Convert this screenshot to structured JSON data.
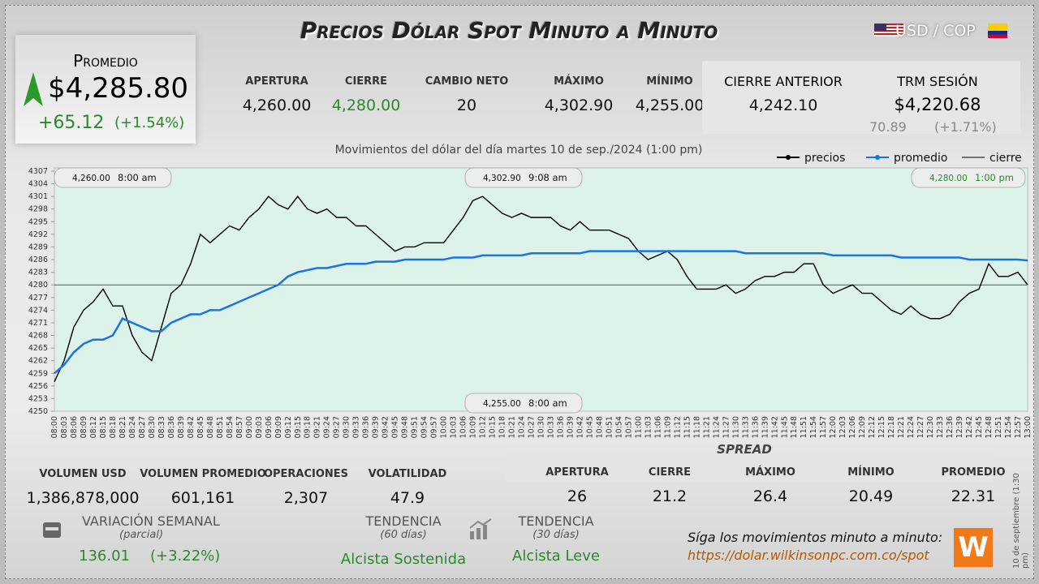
{
  "header": {
    "title": "Precios Dólar Spot Minuto a Minuto",
    "pair": "USD / COP"
  },
  "average": {
    "label": "Promedio",
    "value": "$4,285.80",
    "change": "+65.12",
    "pct": "(+1.54%)"
  },
  "stats": [
    {
      "label": "APERTURA",
      "value": "4,260.00"
    },
    {
      "label": "CIERRE",
      "value": "4,280.00"
    },
    {
      "label": "CAMBIO NETO",
      "value": "20"
    },
    {
      "label": "MÁXIMO",
      "value": "4,302.90"
    },
    {
      "label": "MÍNIMO",
      "value": "4,255.00"
    }
  ],
  "previous": {
    "close_label": "CIERRE ANTERIOR",
    "close_value": "4,242.10",
    "trm_label": "TRM SESIÓN",
    "trm_value": "$4,220.68",
    "trm_change": "70.89",
    "trm_pct": "(+1.71%)"
  },
  "volume": [
    {
      "label": "VOLUMEN USD",
      "value": "1,386,878,000"
    },
    {
      "label": "VOLUMEN PROMEDIO",
      "value": "601,161"
    },
    {
      "label": "OPERACIONES",
      "value": "2,307"
    },
    {
      "label": "VOLATILIDAD",
      "value": "47.9"
    }
  ],
  "spread": {
    "title": "SPREAD",
    "items": [
      {
        "label": "APERTURA",
        "value": "26"
      },
      {
        "label": "CIERRE",
        "value": "21.2"
      },
      {
        "label": "MÁXIMO",
        "value": "26.4"
      },
      {
        "label": "MÍNIMO",
        "value": "20.49"
      },
      {
        "label": "PROMEDIO",
        "value": "22.31"
      }
    ]
  },
  "weekly": {
    "label": "VARIACIÓN SEMANAL",
    "note": "(parcial)",
    "value": "136.01",
    "pct": "(+3.22%)"
  },
  "trends": [
    {
      "label": "TENDENCIA",
      "note": "(60 días)",
      "value": "Alcista Sostenida"
    },
    {
      "label": "TENDENCIA",
      "note": "(30 días)",
      "value": "Alcista Leve"
    }
  ],
  "footer": {
    "invite": "Síga los movimientos minuto a minuto:",
    "url": "https://dolar.wilkinsonpc.com.co/spot",
    "stamp": "10 de septiembre (1:30 pm)",
    "logo": "W"
  },
  "chart_data": {
    "type": "line",
    "title": "Movimientos del dólar del día martes 10 de sep./2024 (1:00 pm)",
    "categories": [
      "08:00",
      "08:03",
      "08:06",
      "08:09",
      "08:12",
      "08:15",
      "08:18",
      "08:21",
      "08:24",
      "08:27",
      "08:30",
      "08:33",
      "08:36",
      "08:39",
      "08:42",
      "08:45",
      "08:48",
      "08:51",
      "08:54",
      "08:57",
      "09:00",
      "09:03",
      "09:06",
      "09:09",
      "09:12",
      "09:15",
      "09:18",
      "09:21",
      "09:24",
      "09:27",
      "09:30",
      "09:33",
      "09:36",
      "09:39",
      "09:42",
      "09:45",
      "09:48",
      "09:51",
      "09:54",
      "09:57",
      "10:00",
      "10:03",
      "10:06",
      "10:09",
      "10:12",
      "10:15",
      "10:18",
      "10:21",
      "10:24",
      "10:27",
      "10:30",
      "10:33",
      "10:36",
      "10:39",
      "10:42",
      "10:45",
      "10:48",
      "10:51",
      "10:54",
      "10:57",
      "11:00",
      "11:03",
      "11:06",
      "11:09",
      "11:12",
      "11:15",
      "11:18",
      "11:21",
      "11:24",
      "11:27",
      "11:30",
      "11:33",
      "11:36",
      "11:39",
      "11:42",
      "11:45",
      "11:48",
      "11:51",
      "11:54",
      "11:57",
      "12:00",
      "12:03",
      "12:06",
      "12:09",
      "12:12",
      "12:15",
      "12:18",
      "12:21",
      "12:24",
      "12:27",
      "12:30",
      "12:33",
      "12:36",
      "12:39",
      "12:42",
      "12:45",
      "12:48",
      "12:51",
      "12:54",
      "12:57",
      "13:00"
    ],
    "series": [
      {
        "name": "precios",
        "color": "#000000",
        "values": [
          4257,
          4262,
          4270,
          4274,
          4276,
          4279,
          4275,
          4275,
          4268,
          4264,
          4262,
          4270,
          4278,
          4280,
          4285,
          4292,
          4290,
          4292,
          4294,
          4293,
          4296,
          4298,
          4301,
          4299,
          4298,
          4301,
          4298,
          4297,
          4298,
          4296,
          4296,
          4294,
          4294,
          4292,
          4290,
          4288,
          4289,
          4289,
          4290,
          4290,
          4290,
          4293,
          4296,
          4300,
          4301,
          4299,
          4297,
          4296,
          4297,
          4296,
          4296,
          4296,
          4294,
          4293,
          4295,
          4293,
          4293,
          4293,
          4292,
          4291,
          4288,
          4286,
          4287,
          4288,
          4286,
          4282,
          4279,
          4279,
          4279,
          4280,
          4278,
          4279,
          4281,
          4282,
          4282,
          4283,
          4283,
          4285,
          4285,
          4280,
          4278,
          4279,
          4280,
          4278,
          4278,
          4276,
          4274,
          4273,
          4275,
          4273,
          4272,
          4272,
          4273,
          4276,
          4278,
          4279,
          4285,
          4282,
          4282,
          4283,
          4280
        ]
      },
      {
        "name": "promedio",
        "color": "#1a73e8",
        "values": [
          4259,
          4261,
          4264,
          4266,
          4267,
          4267,
          4268,
          4272,
          4271,
          4270,
          4269,
          4269,
          4271,
          4272,
          4273,
          4273,
          4274,
          4274,
          4275,
          4276,
          4277,
          4278,
          4279,
          4280,
          4282,
          4283,
          4283.5,
          4284,
          4284,
          4284.5,
          4285,
          4285,
          4285,
          4285.5,
          4285.5,
          4285.5,
          4286,
          4286,
          4286,
          4286,
          4286,
          4286.5,
          4286.5,
          4286.5,
          4287,
          4287,
          4287,
          4287,
          4287,
          4287.5,
          4287.5,
          4287.5,
          4287.5,
          4287.5,
          4287.5,
          4288,
          4288,
          4288,
          4288,
          4288,
          4288,
          4288,
          4288,
          4288,
          4288,
          4288,
          4288,
          4288,
          4288,
          4288,
          4288,
          4287.5,
          4287.5,
          4287.5,
          4287.5,
          4287.5,
          4287.5,
          4287.5,
          4287.5,
          4287.5,
          4287,
          4287,
          4287,
          4287,
          4287,
          4287,
          4287,
          4286.5,
          4286.5,
          4286.5,
          4286.5,
          4286.5,
          4286.5,
          4286.5,
          4286,
          4286,
          4286,
          4286,
          4286,
          4286,
          4285.8
        ]
      }
    ],
    "close_line": {
      "name": "cierre",
      "color": "#000000",
      "value": 4280
    },
    "ylim": [
      4250,
      4307
    ],
    "yticks": [
      4250,
      4253,
      4256,
      4259,
      4262,
      4265,
      4268,
      4271,
      4274,
      4277,
      4280,
      4283,
      4286,
      4289,
      4292,
      4295,
      4298,
      4301,
      4304,
      4307
    ],
    "annotations": [
      {
        "value": "4,260.00",
        "time": "8:00 am"
      },
      {
        "value": "4,302.90",
        "time": "9:08 am"
      },
      {
        "value": "4,280.00",
        "time": "1:00 pm"
      },
      {
        "value": "4,255.00",
        "time": "8:00 am"
      }
    ]
  }
}
